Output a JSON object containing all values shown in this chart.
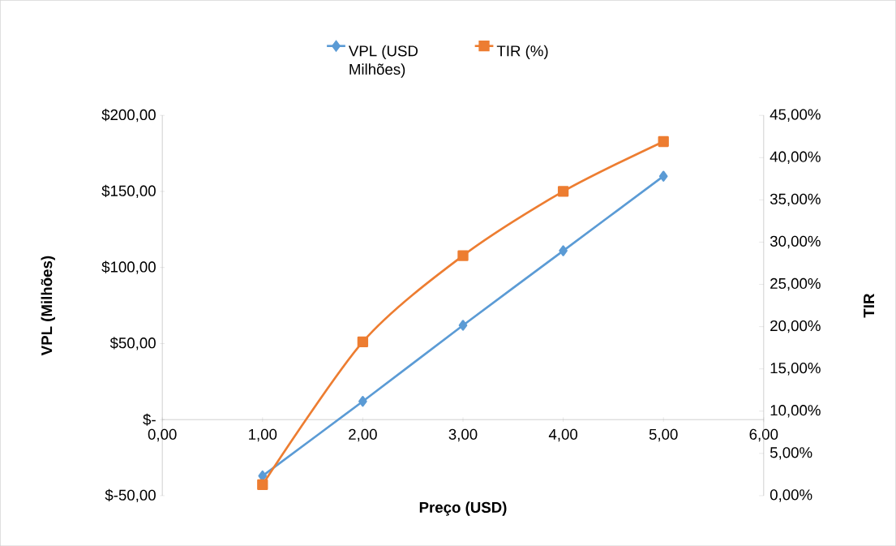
{
  "chart_data": {
    "type": "line",
    "xlabel": "Preço (USD)",
    "ylabel": "VPL (Milhões)",
    "y2label": "TIR",
    "x": [
      1,
      2,
      3,
      4,
      5
    ],
    "series": [
      {
        "name": "VPL (USD Milhões)",
        "color": "#5b9bd5",
        "marker": "diamond",
        "values": [
          -37,
          12,
          62,
          111,
          160
        ]
      },
      {
        "name": "TIR (%)",
        "color": "#ed7d31",
        "marker": "square",
        "axis": "y2",
        "values": [
          1.3,
          18.2,
          28.4,
          36.0,
          41.9
        ]
      }
    ],
    "xlim": [
      0,
      6
    ],
    "ylim": [
      -50,
      200
    ],
    "y2lim": [
      0,
      45
    ],
    "xticks": [
      {
        "value": 0,
        "label": "0,00"
      },
      {
        "value": 1,
        "label": "1,00"
      },
      {
        "value": 2,
        "label": "2,00"
      },
      {
        "value": 3,
        "label": "3,00"
      },
      {
        "value": 4,
        "label": "4,00"
      },
      {
        "value": 5,
        "label": "5,00"
      },
      {
        "value": 6,
        "label": "6,00"
      }
    ],
    "yticks": [
      {
        "value": -50,
        "label": "$-50,00"
      },
      {
        "value": 0,
        "label": "$-"
      },
      {
        "value": 50,
        "label": "$50,00"
      },
      {
        "value": 100,
        "label": "$100,00"
      },
      {
        "value": 150,
        "label": "$150,00"
      },
      {
        "value": 200,
        "label": "$200,00"
      }
    ],
    "y2ticks": [
      {
        "value": 0,
        "label": "0,00%"
      },
      {
        "value": 5,
        "label": "5,00%"
      },
      {
        "value": 10,
        "label": "10,00%"
      },
      {
        "value": 15,
        "label": "15,00%"
      },
      {
        "value": 20,
        "label": "20,00%"
      },
      {
        "value": 25,
        "label": "25,00%"
      },
      {
        "value": 30,
        "label": "30,00%"
      },
      {
        "value": 35,
        "label": "35,00%"
      },
      {
        "value": 40,
        "label": "40,00%"
      },
      {
        "value": 45,
        "label": "45,00%"
      }
    ],
    "grid": false,
    "legend": "top",
    "line_style": "solid"
  }
}
